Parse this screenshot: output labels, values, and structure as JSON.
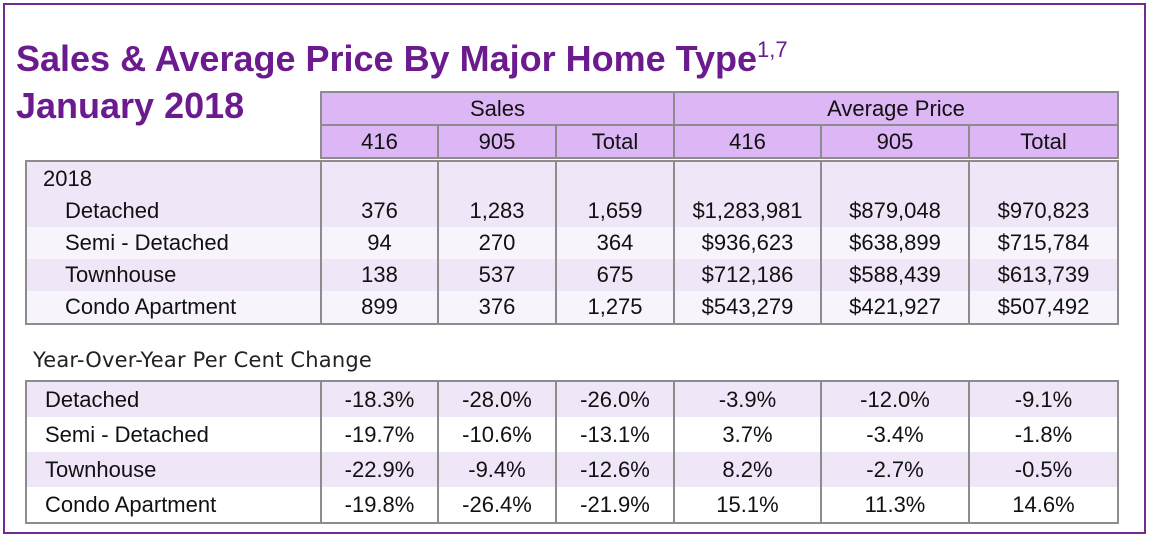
{
  "title": {
    "text": "Sales & Average Price By Major Home Type",
    "superscript": "1,7",
    "subtitle": "January 2018"
  },
  "header": {
    "groups": [
      "Sales",
      "Average Price"
    ],
    "columns": [
      "416",
      "905",
      "Total",
      "416",
      "905",
      "Total"
    ]
  },
  "table_2018": {
    "year_label": "2018",
    "rows": [
      {
        "label": "Detached",
        "values": [
          "376",
          "1,283",
          "1,659",
          "$1,283,981",
          "$879,048",
          "$970,823"
        ]
      },
      {
        "label": "Semi - Detached",
        "values": [
          "94",
          "270",
          "364",
          "$936,623",
          "$638,899",
          "$715,784"
        ]
      },
      {
        "label": "Townhouse",
        "values": [
          "138",
          "537",
          "675",
          "$712,186",
          "$588,439",
          "$613,739"
        ]
      },
      {
        "label": "Condo Apartment",
        "values": [
          "899",
          "376",
          "1,275",
          "$543,279",
          "$421,927",
          "$507,492"
        ]
      }
    ]
  },
  "yoy": {
    "label": "Year-Over-Year Per Cent Change",
    "rows": [
      {
        "label": "Detached",
        "values": [
          "-18.3%",
          "-28.0%",
          "-26.0%",
          "-3.9%",
          "-12.0%",
          "-9.1%"
        ]
      },
      {
        "label": "Semi - Detached",
        "values": [
          "-19.7%",
          "-10.6%",
          "-13.1%",
          "3.7%",
          "-3.4%",
          "-1.8%"
        ]
      },
      {
        "label": "Townhouse",
        "values": [
          "-22.9%",
          "-9.4%",
          "-12.6%",
          "8.2%",
          "-2.7%",
          "-0.5%"
        ]
      },
      {
        "label": "Condo Apartment",
        "values": [
          "-19.8%",
          "-26.4%",
          "-21.9%",
          "15.1%",
          "11.3%",
          "14.6%"
        ]
      }
    ]
  },
  "colors": {
    "title": "#6b1b8e",
    "border": "#6f2c91",
    "header_fill": "#dcb6f5",
    "row_shade": "#efe6f7"
  }
}
